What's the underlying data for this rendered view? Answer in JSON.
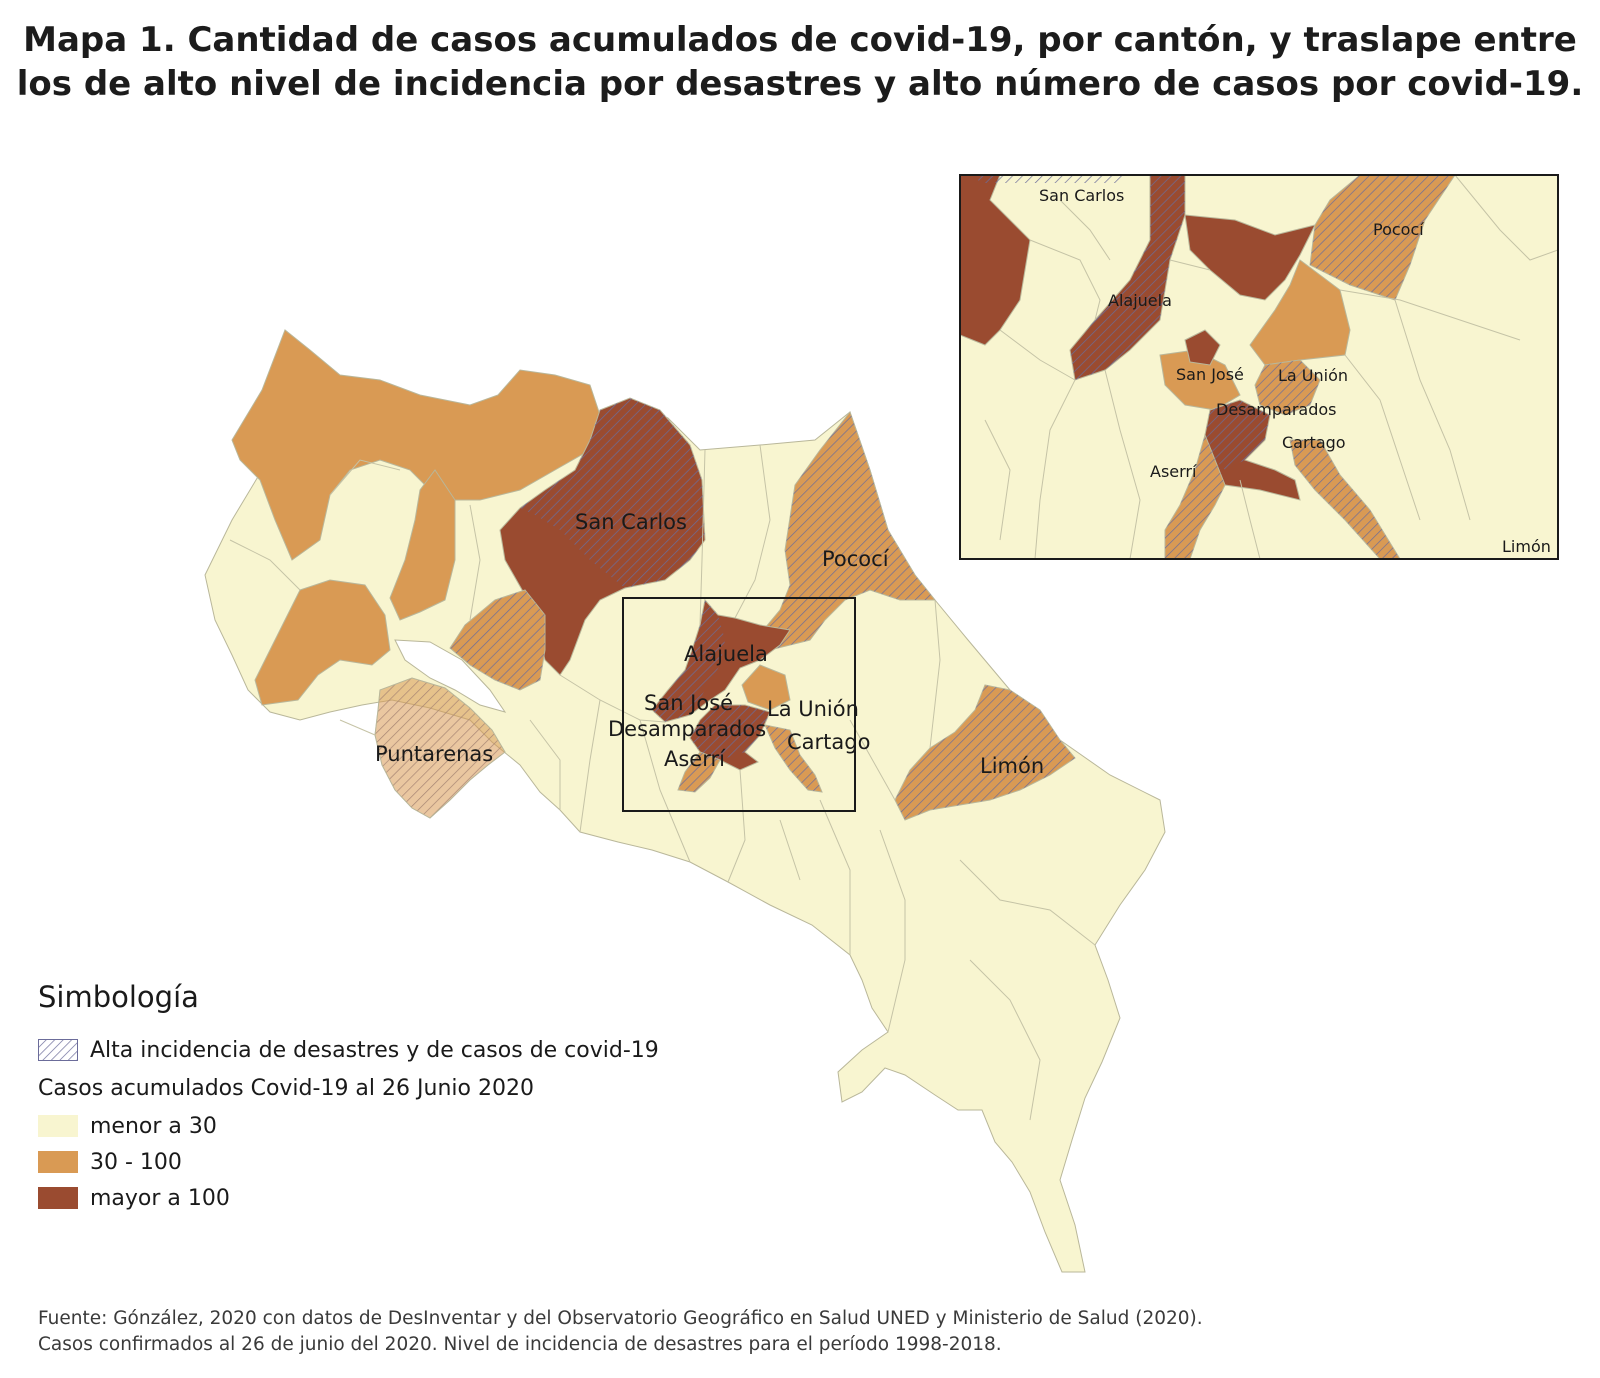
{
  "title": {
    "line1": "Mapa 1. Cantidad de casos acumulados de covid-19, por cantón, y traslape entre",
    "line2": "los de alto nivel de incidencia por desastres y alto número de casos por covid-19."
  },
  "colors": {
    "low": "#f8f5d0",
    "mid": "#d99a54",
    "high": "#9a4b30",
    "hatch": "#6b6c9a",
    "border": "#b9b79a"
  },
  "map_labels": {
    "san_carlos": "San Carlos",
    "pococi": "Pococí",
    "alajuela": "Alajuela",
    "san_jose": "San José",
    "la_union": "La Unión",
    "desamparados": "Desamparados",
    "cartago": "Cartago",
    "aserri": "Aserrí",
    "puntarenas": "Puntarenas",
    "limon": "Limón"
  },
  "inset_labels": {
    "san_carlos": "San Carlos",
    "pococi": "Pococí",
    "alajuela": "Alajuela",
    "san_jose": "San José",
    "la_union": "La Unión",
    "desamparados": "Desamparados",
    "cartago": "Cartago",
    "aserri": "Aserrí",
    "limon": "Limón"
  },
  "legend": {
    "title": "Simbología",
    "hatch_label": "Alta incidencia de desastres y de casos de covid-19",
    "subtitle": "Casos acumulados Covid-19 al 26 Junio 2020",
    "classes": [
      {
        "label": "menor a 30",
        "color": "#f8f5d0"
      },
      {
        "label": "30 - 100",
        "color": "#d99a54"
      },
      {
        "label": "mayor a 100",
        "color": "#9a4b30"
      }
    ]
  },
  "source": {
    "line1": "Fuente: Gónzález, 2020 con datos de DesInventar y del Observatorio Geográfico en Salud UNED y Ministerio de Salud (2020).",
    "line2": "Casos confirmados al 26 de junio del 2020. Nivel de incidencia de desastres para el período 1998-2018."
  }
}
